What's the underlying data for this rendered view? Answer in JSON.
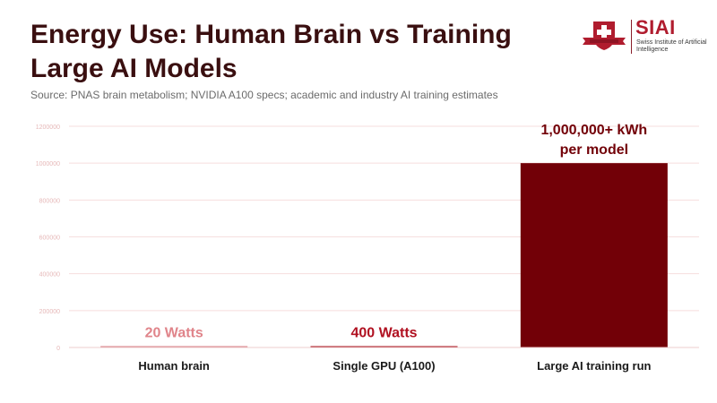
{
  "header": {
    "title": "Energy Use: Human Brain vs Training Large AI Models",
    "subtitle": "Source: PNAS brain metabolism; NVIDIA A100 specs; academic and industry AI training estimates"
  },
  "logo": {
    "brand": "SIAI",
    "tagline": "Swiss Institute of Artificial Intelligence"
  },
  "colors": {
    "title": "#3a0f10",
    "grid": "#f6dede",
    "tick": "#e6b8b8",
    "category_label": "#1a1a1a",
    "brand": "#b01c2e"
  },
  "chart_data": {
    "type": "bar",
    "categories": [
      "Human brain",
      "Single GPU (A100)",
      "Large AI training run"
    ],
    "values": [
      20,
      400,
      1000000
    ],
    "bar_colors": [
      "#d9828a",
      "#a8141f",
      "#720007"
    ],
    "data_labels": [
      "20 Watts",
      "400 Watts",
      "1,000,000+ kWh\nper model"
    ],
    "label_colors": [
      "#e0848a",
      "#b01020",
      "#720007"
    ],
    "ylim": [
      0,
      1200000
    ],
    "yticks": [
      0,
      200000,
      400000,
      600000,
      800000,
      1000000,
      1200000
    ],
    "grid": true
  }
}
